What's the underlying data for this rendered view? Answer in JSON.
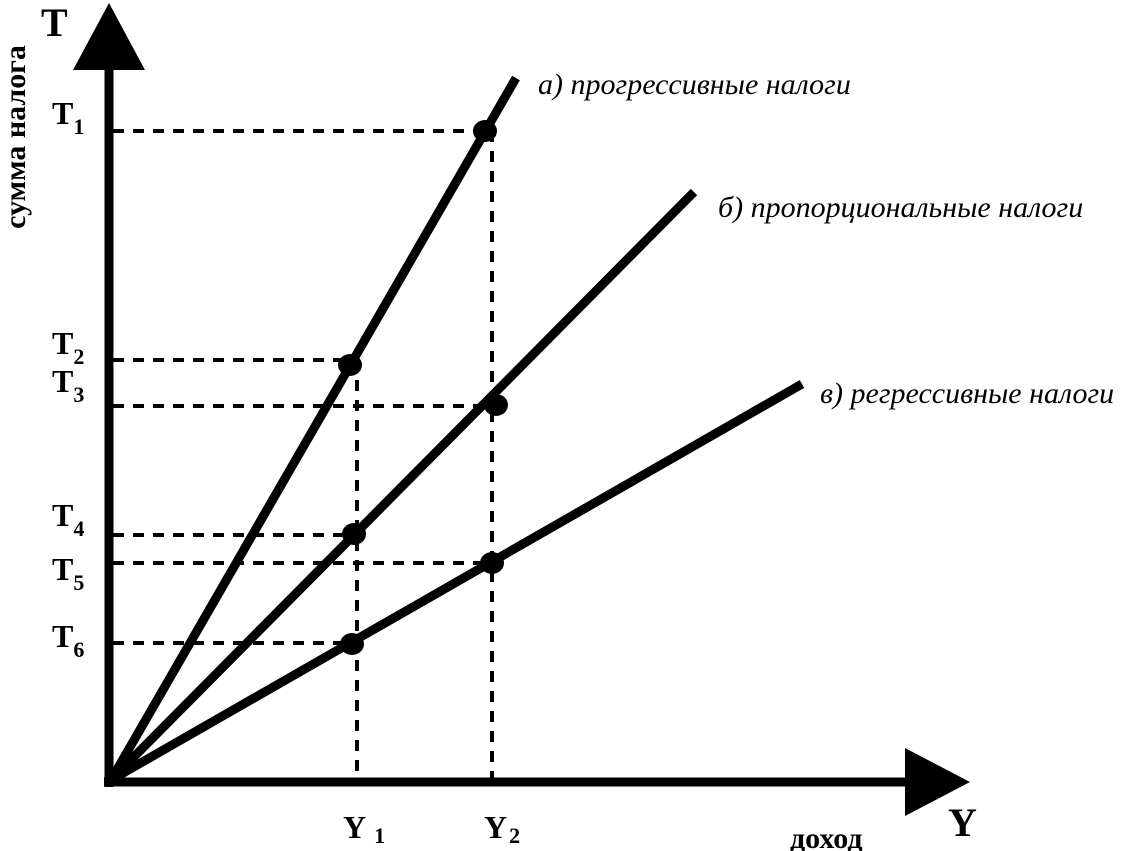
{
  "axes": {
    "y_letter": "T",
    "y_title": "сумма налога",
    "x_letter": "Y",
    "x_title": "доход"
  },
  "x_ticks": [
    {
      "main": "Y",
      "sub": "1"
    },
    {
      "main": "Y",
      "sub": "2"
    }
  ],
  "y_ticks": [
    {
      "main": "T",
      "sub": "1"
    },
    {
      "main": "T",
      "sub": "2"
    },
    {
      "main": "T",
      "sub": "3"
    },
    {
      "main": "T",
      "sub": "4"
    },
    {
      "main": "T",
      "sub": "5"
    },
    {
      "main": "T",
      "sub": "6"
    }
  ],
  "lines": [
    {
      "label": "а) прогрессивные налоги"
    },
    {
      "label": "б) пропорциональные налоги"
    },
    {
      "label": "в) регрессивные налоги"
    }
  ],
  "colors": {
    "ink": "#000000",
    "background": "#ffffff"
  }
}
